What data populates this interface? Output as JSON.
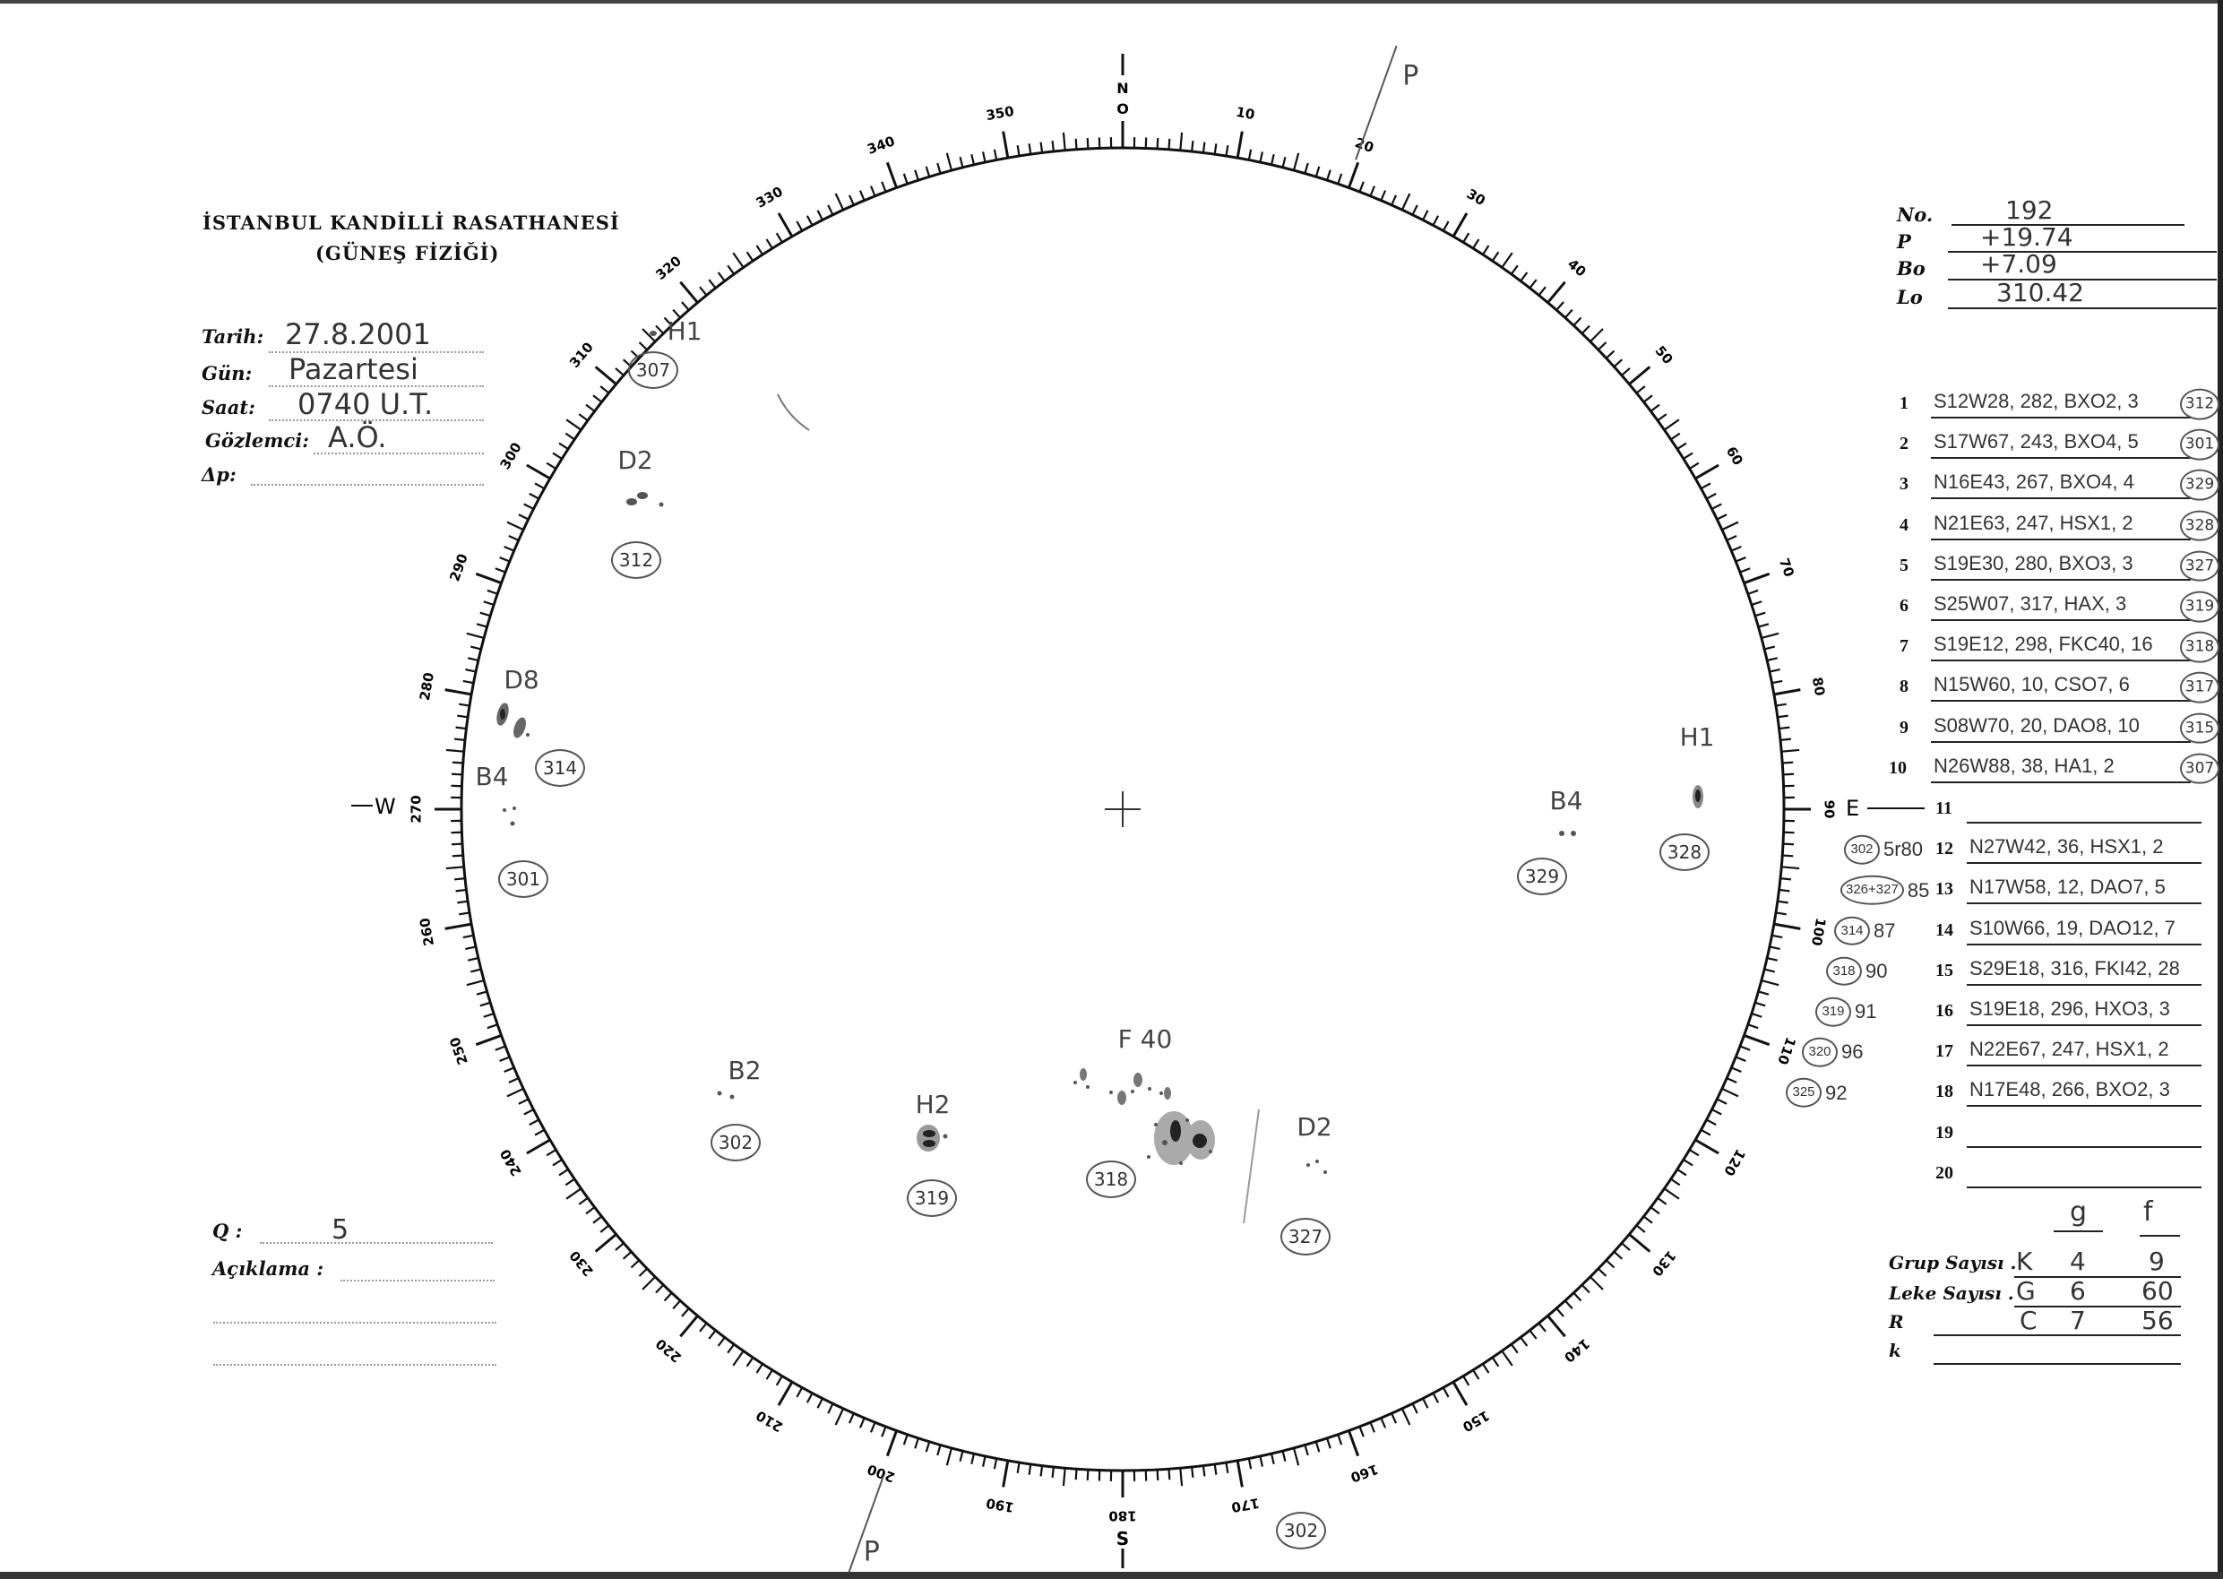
{
  "header": {
    "institution": "İSTANBUL KANDİLLİ RASATHANESİ",
    "department": "(GÜNEŞ FİZİĞİ)"
  },
  "observation": {
    "tarih_label": "Tarih:",
    "tarih_value": "27.8.2001",
    "gun_label": "Gün:",
    "gun_value": "Pazartesi",
    "saat_label": "Saat:",
    "saat_value": "0740 U.T.",
    "gozlemci_label": "Gözlemci:",
    "gozlemci_value": "A.Ö.",
    "dp_label": "Δp:",
    "dp_value": ""
  },
  "quality": {
    "q_label": "Q :",
    "q_value": "5",
    "aciklama_label": "Açıklama :"
  },
  "ephemeris": {
    "no_label": "No.",
    "no_value": "192",
    "p_label": "P",
    "p_value": "+19.74",
    "bo_label": "Bo",
    "bo_value": "+7.09",
    "lo_label": "Lo",
    "lo_value": "310.42"
  },
  "disc": {
    "compass": {
      "north": "N",
      "zero": "O",
      "east": "E",
      "south": "S",
      "west": "W"
    },
    "scale_labels": [
      "0",
      "10",
      "20",
      "30",
      "40",
      "50",
      "60",
      "70",
      "80",
      "90",
      "100",
      "110",
      "120",
      "130",
      "140",
      "150",
      "160",
      "170",
      "180",
      "190",
      "200",
      "210",
      "220",
      "230",
      "240",
      "250",
      "260",
      "270",
      "280",
      "290",
      "300",
      "310",
      "320",
      "330",
      "340",
      "350"
    ],
    "p_axis_label": "P",
    "p_angle_deg": 19.74,
    "groups": [
      {
        "type": "H1",
        "number": "307"
      },
      {
        "type": "D2",
        "number": "312"
      },
      {
        "type": "D8",
        "number": "314"
      },
      {
        "type": "B4",
        "number": "301"
      },
      {
        "type": "B2",
        "number": "302"
      },
      {
        "type": "H2",
        "number": "319"
      },
      {
        "type": "F 40",
        "number": "318"
      },
      {
        "type": "D2",
        "number": "327"
      },
      {
        "type": "B4",
        "number": "329"
      },
      {
        "type": "H1",
        "number": "328"
      }
    ],
    "outside_number": "302"
  },
  "groups_table": {
    "rows": [
      {
        "n": "1",
        "text": "S12W28, 282, BXO2, 3",
        "group": "312",
        "prev_group": "",
        "prev_note": ""
      },
      {
        "n": "2",
        "text": "S17W67, 243, BXO4, 5",
        "group": "301",
        "prev_group": "",
        "prev_note": ""
      },
      {
        "n": "3",
        "text": "N16E43, 267, BXO4, 4",
        "group": "329",
        "prev_group": "",
        "prev_note": ""
      },
      {
        "n": "4",
        "text": "N21E63, 247, HSX1, 2",
        "group": "328",
        "prev_group": "",
        "prev_note": ""
      },
      {
        "n": "5",
        "text": "S19E30, 280, BXO3, 3",
        "group": "327",
        "prev_group": "",
        "prev_note": ""
      },
      {
        "n": "6",
        "text": "S25W07, 317, HAX, 3",
        "group": "319",
        "prev_group": "",
        "prev_note": ""
      },
      {
        "n": "7",
        "text": "S19E12, 298, FKC40, 16",
        "group": "318",
        "prev_group": "",
        "prev_note": ""
      },
      {
        "n": "8",
        "text": "N15W60, 10, CSO7, 6",
        "group": "317",
        "prev_group": "",
        "prev_note": ""
      },
      {
        "n": "9",
        "text": "S08W70, 20, DAO8, 10",
        "group": "315",
        "prev_group": "",
        "prev_note": ""
      },
      {
        "n": "10",
        "text": "N26W88, 38, HA1, 2",
        "group": "307",
        "prev_group": "",
        "prev_note": ""
      },
      {
        "n": "11",
        "text": "",
        "group": "",
        "prev_group": "",
        "prev_note": ""
      },
      {
        "n": "12",
        "text": "N27W42, 36, HSX1, 2",
        "group": "",
        "prev_group": "302",
        "prev_note": "5r80"
      },
      {
        "n": "13",
        "text": "N17W58, 12, DAO7, 5",
        "group": "",
        "prev_group": "326+327",
        "prev_note": "85"
      },
      {
        "n": "14",
        "text": "S10W66, 19, DAO12, 7",
        "group": "",
        "prev_group": "314",
        "prev_note": "87"
      },
      {
        "n": "15",
        "text": "S29E18, 316, FKI42, 28",
        "group": "",
        "prev_group": "318",
        "prev_note": "90"
      },
      {
        "n": "16",
        "text": "S19E18, 296, HXO3, 3",
        "group": "",
        "prev_group": "319",
        "prev_note": "91"
      },
      {
        "n": "17",
        "text": "N22E67, 247, HSX1, 2",
        "group": "",
        "prev_group": "320",
        "prev_note": "96"
      },
      {
        "n": "18",
        "text": "N17E48, 266, BXO2, 3",
        "group": "",
        "prev_group": "325",
        "prev_note": "92"
      },
      {
        "n": "19",
        "text": "",
        "group": "",
        "prev_group": "",
        "prev_note": ""
      },
      {
        "n": "20",
        "text": "",
        "group": "",
        "prev_group": "",
        "prev_note": ""
      }
    ]
  },
  "counts": {
    "col_g": "g",
    "col_f": "f",
    "grup_label": "Grup Sayısı .",
    "grup_letter": "K",
    "grup_g": "4",
    "grup_f": "9",
    "leke_label": "Leke Sayısı .",
    "leke_letter": "G",
    "leke_g": "6",
    "leke_f": "60",
    "r_label": "R",
    "r_letter": "C",
    "r_g": "7",
    "r_f": "56",
    "k_label": "k",
    "k_value": ""
  }
}
